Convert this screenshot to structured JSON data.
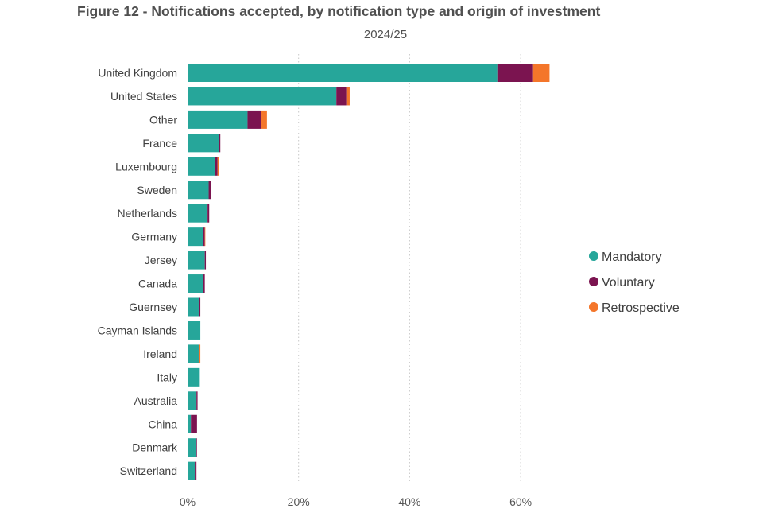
{
  "chart_data": {
    "type": "bar",
    "orientation": "horizontal",
    "stacked": true,
    "title": "Figure 12 - Notifications accepted, by notification type and origin of investment",
    "subtitle": "2024/25",
    "categories": [
      "United Kingdom",
      "United States",
      "Other",
      "France",
      "Luxembourg",
      "Sweden",
      "Netherlands",
      "Germany",
      "Jersey",
      "Canada",
      "Guernsey",
      "Cayman Islands",
      "Ireland",
      "Italy",
      "Australia",
      "China",
      "Denmark",
      "Switzerland"
    ],
    "series": [
      {
        "name": "Mandatory",
        "color": "#26A69A",
        "values": [
          55.8,
          26.8,
          10.8,
          5.6,
          4.9,
          3.8,
          3.6,
          2.8,
          3.1,
          2.8,
          2.0,
          2.3,
          2.0,
          2.2,
          1.6,
          0.6,
          1.6,
          1.3
        ]
      },
      {
        "name": "Voluntary",
        "color": "#7B1450",
        "values": [
          6.3,
          1.8,
          2.4,
          0.3,
          0.5,
          0.4,
          0.3,
          0.3,
          0.2,
          0.3,
          0.3,
          0.0,
          0.1,
          0.0,
          0.2,
          1.1,
          0.1,
          0.3
        ]
      },
      {
        "name": "Retrospective",
        "color": "#F4762A",
        "values": [
          3.1,
          0.6,
          1.1,
          0.0,
          0.2,
          0.0,
          0.0,
          0.1,
          0.0,
          0.0,
          0.0,
          0.0,
          0.2,
          0.0,
          0.0,
          0.0,
          0.0,
          0.0
        ]
      }
    ],
    "xlim": [
      0,
      70
    ],
    "xticks": [
      "0%",
      "20%",
      "40%",
      "60%"
    ],
    "xtick_values": [
      0,
      20,
      40,
      60
    ],
    "grid": "vertical dotted",
    "legend_position": "right"
  }
}
